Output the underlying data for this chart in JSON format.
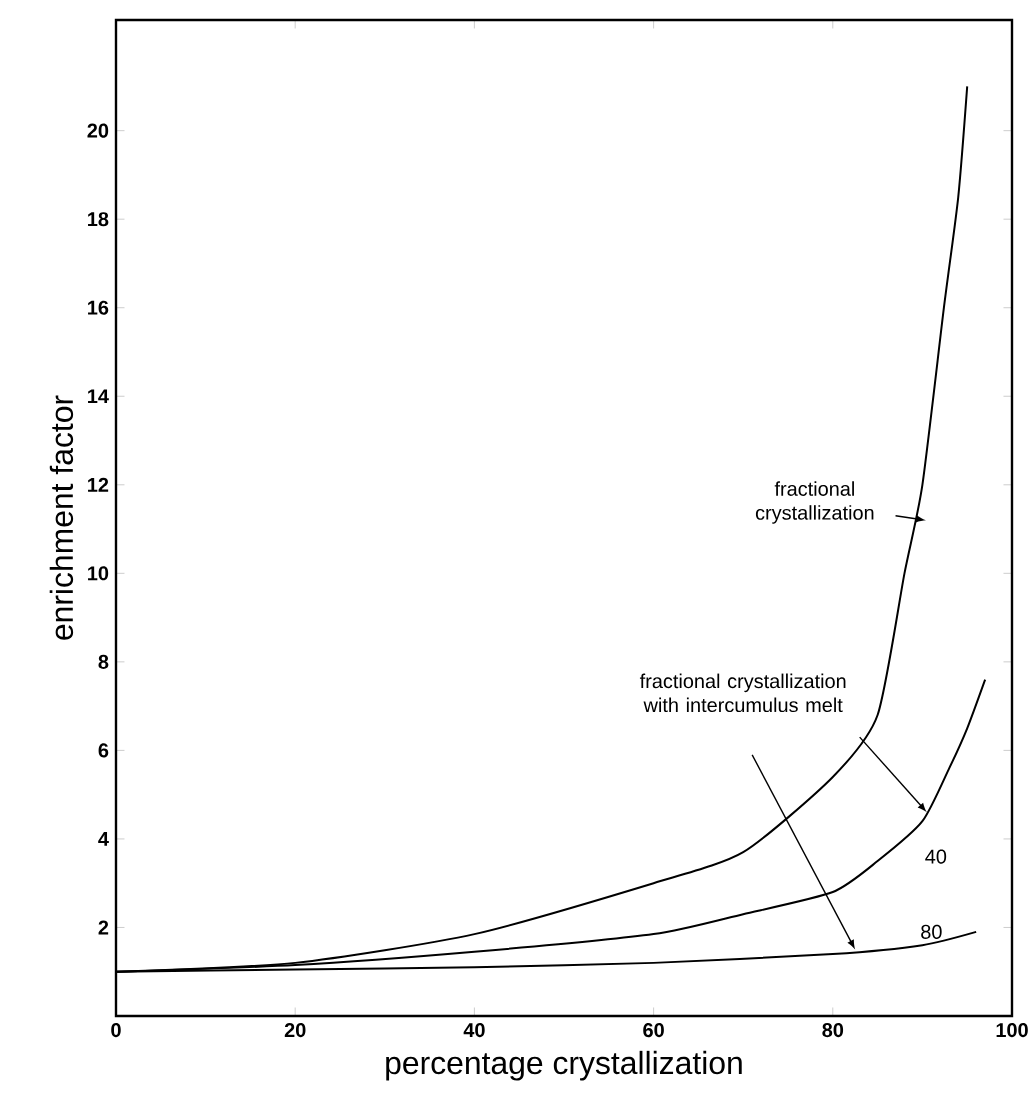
{
  "chart_data": {
    "type": "line",
    "xlabel": "percentage crystallization",
    "ylabel": "enrichment factor",
    "xlim": [
      0,
      100
    ],
    "xticks": [
      0,
      20,
      40,
      60,
      80,
      100
    ],
    "ylim": [
      0,
      22.5
    ],
    "yticks": [
      2,
      4,
      6,
      8,
      10,
      12,
      14,
      16,
      18,
      20
    ],
    "grid": false,
    "legend": false,
    "marker": "none",
    "line_style": "solid",
    "series": [
      {
        "name": "fractional crystallization",
        "color": "#000000",
        "x": [
          0,
          20,
          40,
          60,
          70,
          80,
          85,
          88,
          90,
          92.4,
          94,
          95
        ],
        "values": [
          1,
          1.2,
          1.85,
          3.0,
          3.7,
          5.4,
          6.8,
          10.0,
          12.0,
          16.0,
          18.5,
          21.0
        ]
      },
      {
        "name": "40",
        "color": "#000000",
        "x": [
          0,
          20,
          40,
          60,
          70,
          80,
          85,
          90,
          93,
          95,
          97
        ],
        "values": [
          1,
          1.15,
          1.45,
          1.85,
          2.3,
          2.8,
          3.5,
          4.4,
          5.6,
          6.5,
          7.6
        ]
      },
      {
        "name": "80",
        "color": "#000000",
        "x": [
          0,
          20,
          40,
          60,
          80,
          90,
          96
        ],
        "values": [
          1,
          1.05,
          1.1,
          1.2,
          1.4,
          1.6,
          1.9
        ]
      }
    ],
    "annotations": [
      "fractional crystallization with intercumulus melt"
    ]
  }
}
